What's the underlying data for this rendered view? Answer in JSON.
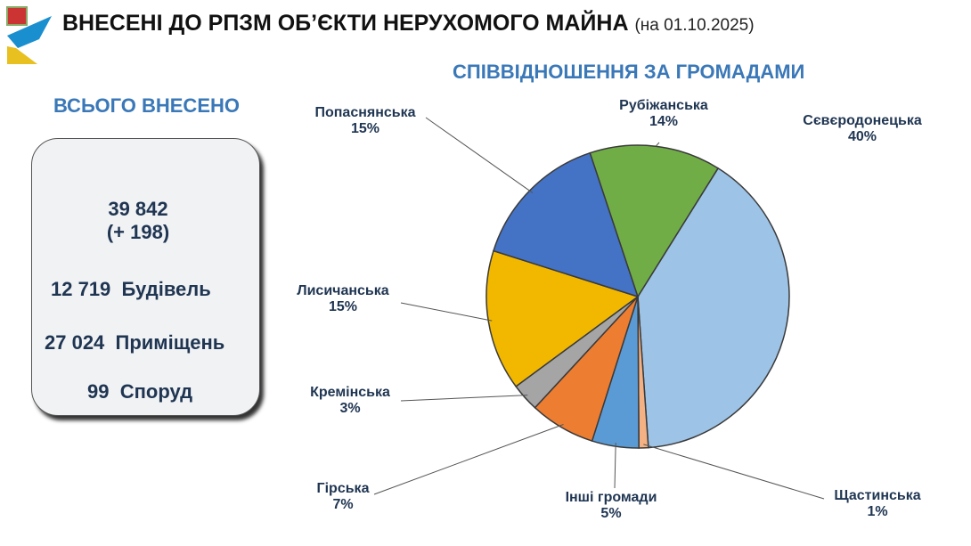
{
  "header": {
    "title": "ВНЕСЕНІ ДО РПЗМ ОБ’ЄКТИ НЕРУХОМОГО МАЙНА",
    "date": "(на 01.10.2025)"
  },
  "summary": {
    "heading": "ВСЬОГО ВНЕСЕНО",
    "total": "39 842",
    "delta": "(+ 198)",
    "rows": [
      {
        "value": "12 719",
        "label": "Будівель"
      },
      {
        "value": "27 024",
        "label": "Приміщень"
      },
      {
        "value": "99",
        "label": "Споруд"
      }
    ],
    "house_color": "#ffe14d"
  },
  "chart_data": {
    "type": "pie",
    "title": "СПІВВІДНОШЕННЯ ЗА ГРОМАДАМИ",
    "slices": [
      {
        "name": "Сєвєродонецька",
        "value": 40,
        "label": "40%",
        "color": "#9dc3e6"
      },
      {
        "name": "Щастинська",
        "value": 1,
        "label": "1%",
        "color": "#f4b183"
      },
      {
        "name": "Інші громади",
        "value": 5,
        "label": "5%",
        "color": "#5b9bd5"
      },
      {
        "name": "Гірська",
        "value": 7,
        "label": "7%",
        "color": "#ed7d31"
      },
      {
        "name": "Кремінська",
        "value": 3,
        "label": "3%",
        "color": "#a5a5a5"
      },
      {
        "name": "Лисичанська",
        "value": 15,
        "label": "15%",
        "color": "#f2b800"
      },
      {
        "name": "Попаснянська",
        "value": 15,
        "label": "15%",
        "color": "#4472c4"
      },
      {
        "name": "Рубіжанська",
        "value": 14,
        "label": "14%",
        "color": "#70ad47"
      }
    ]
  }
}
